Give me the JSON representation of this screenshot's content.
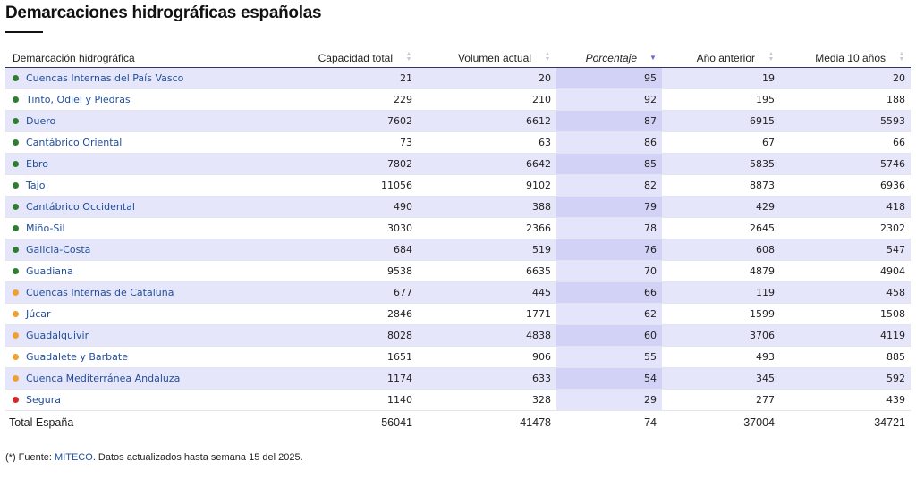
{
  "page": {
    "title": "Demarcaciones hidrográficas españolas"
  },
  "colors": {
    "green": "#2e7d32",
    "orange": "#f0a030",
    "red": "#d62828",
    "link": "#1f4e9c"
  },
  "table": {
    "columns": [
      {
        "label": "Demarcación hidrográfica",
        "sortable": false,
        "sorted": false
      },
      {
        "label": "Capacidad total",
        "sortable": true,
        "sorted": false
      },
      {
        "label": "Volumen actual",
        "sortable": true,
        "sorted": false
      },
      {
        "label": "Porcentaje",
        "sortable": true,
        "sorted": true
      },
      {
        "label": "Año anterior",
        "sortable": true,
        "sorted": false
      },
      {
        "label": "Media 10 años",
        "sortable": true,
        "sorted": false
      }
    ],
    "rows": [
      {
        "name": "Cuencas Internas del País Vasco",
        "status": "green",
        "capacity": "21",
        "volume": "20",
        "percent": "95",
        "previous": "19",
        "avg10": "20"
      },
      {
        "name": "Tinto, Odiel y Piedras",
        "status": "green",
        "capacity": "229",
        "volume": "210",
        "percent": "92",
        "previous": "195",
        "avg10": "188"
      },
      {
        "name": "Duero",
        "status": "green",
        "capacity": "7602",
        "volume": "6612",
        "percent": "87",
        "previous": "6915",
        "avg10": "5593"
      },
      {
        "name": "Cantábrico Oriental",
        "status": "green",
        "capacity": "73",
        "volume": "63",
        "percent": "86",
        "previous": "67",
        "avg10": "66"
      },
      {
        "name": "Ebro",
        "status": "green",
        "capacity": "7802",
        "volume": "6642",
        "percent": "85",
        "previous": "5835",
        "avg10": "5746"
      },
      {
        "name": "Tajo",
        "status": "green",
        "capacity": "11056",
        "volume": "9102",
        "percent": "82",
        "previous": "8873",
        "avg10": "6936"
      },
      {
        "name": "Cantábrico Occidental",
        "status": "green",
        "capacity": "490",
        "volume": "388",
        "percent": "79",
        "previous": "429",
        "avg10": "418"
      },
      {
        "name": "Miño-Sil",
        "status": "green",
        "capacity": "3030",
        "volume": "2366",
        "percent": "78",
        "previous": "2645",
        "avg10": "2302"
      },
      {
        "name": "Galicia-Costa",
        "status": "green",
        "capacity": "684",
        "volume": "519",
        "percent": "76",
        "previous": "608",
        "avg10": "547"
      },
      {
        "name": "Guadiana",
        "status": "green",
        "capacity": "9538",
        "volume": "6635",
        "percent": "70",
        "previous": "4879",
        "avg10": "4904"
      },
      {
        "name": "Cuencas Internas de Cataluña",
        "status": "orange",
        "capacity": "677",
        "volume": "445",
        "percent": "66",
        "previous": "119",
        "avg10": "458"
      },
      {
        "name": "Júcar",
        "status": "orange",
        "capacity": "2846",
        "volume": "1771",
        "percent": "62",
        "previous": "1599",
        "avg10": "1508"
      },
      {
        "name": "Guadalquivir",
        "status": "orange",
        "capacity": "8028",
        "volume": "4838",
        "percent": "60",
        "previous": "3706",
        "avg10": "4119"
      },
      {
        "name": "Guadalete y Barbate",
        "status": "orange",
        "capacity": "1651",
        "volume": "906",
        "percent": "55",
        "previous": "493",
        "avg10": "885"
      },
      {
        "name": "Cuenca Mediterránea Andaluza",
        "status": "orange",
        "capacity": "1174",
        "volume": "633",
        "percent": "54",
        "previous": "345",
        "avg10": "592"
      },
      {
        "name": "Segura",
        "status": "red",
        "capacity": "1140",
        "volume": "328",
        "percent": "29",
        "previous": "277",
        "avg10": "439"
      }
    ],
    "total": {
      "name": "Total España",
      "capacity": "56041",
      "volume": "41478",
      "percent": "74",
      "previous": "37004",
      "avg10": "34721"
    }
  },
  "footnote": {
    "prefix": "(*) Fuente: ",
    "link": "MITECO",
    "suffix": ". Datos actualizados hasta semana 15 del 2025."
  }
}
